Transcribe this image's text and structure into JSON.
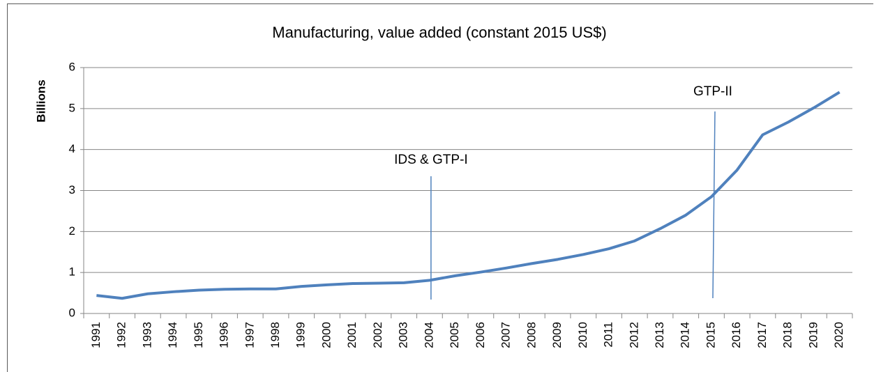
{
  "chart_data": {
    "type": "line",
    "title": "Manufacturing, value added (constant 2015 US$)",
    "y_label": "Billions",
    "categories": [
      "1991",
      "1992",
      "1993",
      "1994",
      "1995",
      "1996",
      "1997",
      "1998",
      "1999",
      "2000",
      "2001",
      "2002",
      "2003",
      "2004",
      "2005",
      "2006",
      "2007",
      "2008",
      "2009",
      "2010",
      "2011",
      "2012",
      "2013",
      "2014",
      "2015",
      "2016",
      "2017",
      "2018",
      "2019",
      "2020"
    ],
    "series": [
      {
        "name": "Manufacturing, value added",
        "color": "#4f81bd",
        "values": [
          0.44,
          0.37,
          0.48,
          0.53,
          0.57,
          0.59,
          0.6,
          0.6,
          0.66,
          0.7,
          0.73,
          0.74,
          0.75,
          0.81,
          0.92,
          1.01,
          1.11,
          1.22,
          1.32,
          1.44,
          1.58,
          1.77,
          2.07,
          2.4,
          2.85,
          3.5,
          4.36,
          4.67,
          5.02,
          5.4
        ]
      }
    ],
    "ylim": [
      0,
      6
    ],
    "yticks": [
      0,
      1,
      2,
      3,
      4,
      5,
      6
    ],
    "grid": true,
    "annotations": [
      {
        "text": "IDS & GTP-I",
        "category": "2004"
      },
      {
        "text": "GTP-II",
        "category": "2015"
      }
    ]
  }
}
